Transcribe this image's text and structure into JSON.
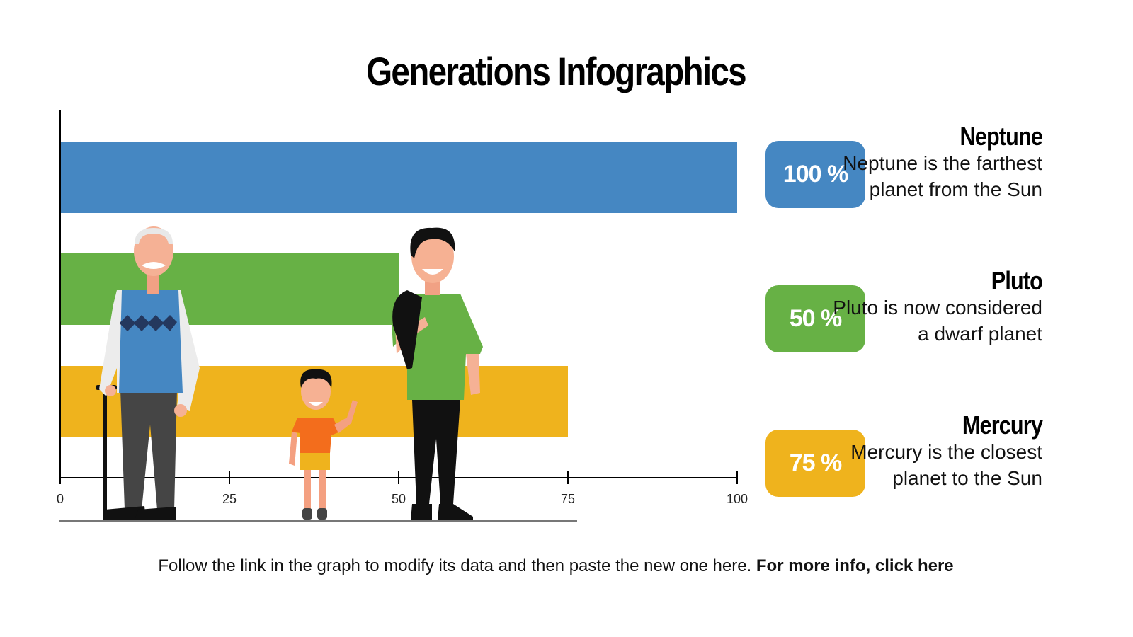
{
  "title": "Generations Infographics",
  "chart_data": {
    "type": "bar",
    "orientation": "horizontal",
    "categories": [
      "Neptune",
      "Pluto",
      "Mercury"
    ],
    "values": [
      100,
      50,
      75
    ],
    "colors": [
      "#4587C2",
      "#67B145",
      "#EFB31D"
    ],
    "xlim": [
      0,
      100
    ],
    "xticks": [
      "0",
      "25",
      "50",
      "75",
      "100"
    ],
    "grid": false,
    "title": "",
    "xlabel": "",
    "ylabel": ""
  },
  "items": [
    {
      "percent": "100 %",
      "name": "Neptune",
      "desc": "Neptune is the farthest planet from the Sun",
      "color": "#4587C2"
    },
    {
      "percent": "50 %",
      "name": "Pluto",
      "desc": "Pluto is now considered a dwarf planet",
      "color": "#67B145"
    },
    {
      "percent": "75 %",
      "name": "Mercury",
      "desc": "Mercury is the closest planet to the Sun",
      "color": "#EFB31D"
    }
  ],
  "footer": {
    "text": "Follow the link in the graph to modify its data and then paste the new one here. ",
    "link": "For more info, click here"
  }
}
